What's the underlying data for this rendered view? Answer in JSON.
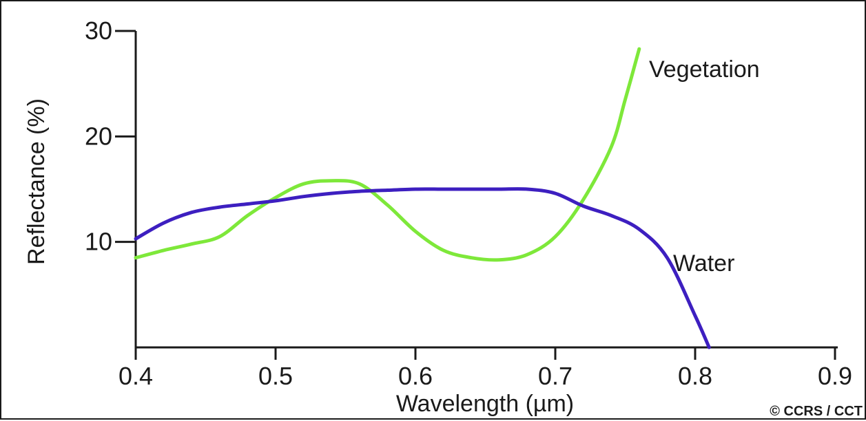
{
  "chart_data": {
    "type": "line",
    "title": "",
    "xlabel": "Wavelength (µm)",
    "ylabel": "Reflectance (%)",
    "xlim": [
      0.4,
      0.9
    ],
    "ylim": [
      0,
      30
    ],
    "x_ticks": [
      0.4,
      0.5,
      0.6,
      0.7,
      0.8,
      0.9
    ],
    "x_tick_labels": [
      "0.4",
      "0.5",
      "0.6",
      "0.7",
      "0.8",
      "0.9"
    ],
    "y_ticks": [
      10,
      20,
      30
    ],
    "y_tick_labels": [
      "10",
      "20",
      "30"
    ],
    "grid": false,
    "legend": "none",
    "series": [
      {
        "name": "Vegetation",
        "color": "#7ee83a",
        "x": [
          0.4,
          0.42,
          0.44,
          0.46,
          0.48,
          0.5,
          0.52,
          0.54,
          0.56,
          0.58,
          0.6,
          0.62,
          0.64,
          0.66,
          0.68,
          0.7,
          0.72,
          0.74,
          0.75,
          0.76
        ],
        "y": [
          8.5,
          9.2,
          9.8,
          10.5,
          12.5,
          14.2,
          15.5,
          15.8,
          15.5,
          13.5,
          11.0,
          9.2,
          8.5,
          8.3,
          8.8,
          10.5,
          14.0,
          19.0,
          23.5,
          28.3
        ]
      },
      {
        "name": "Water",
        "color": "#3d1fc0",
        "x": [
          0.4,
          0.42,
          0.44,
          0.46,
          0.48,
          0.5,
          0.52,
          0.54,
          0.56,
          0.58,
          0.6,
          0.62,
          0.64,
          0.66,
          0.68,
          0.7,
          0.72,
          0.74,
          0.76,
          0.78,
          0.8,
          0.81
        ],
        "y": [
          10.3,
          11.8,
          12.8,
          13.3,
          13.6,
          13.9,
          14.3,
          14.6,
          14.8,
          14.9,
          15.0,
          15.0,
          15.0,
          15.0,
          15.0,
          14.6,
          13.4,
          12.5,
          11.2,
          8.5,
          3.0,
          0.0
        ]
      }
    ],
    "annotations": [
      "Vegetation",
      "Water"
    ],
    "credit": "© CCRS / CCT"
  }
}
